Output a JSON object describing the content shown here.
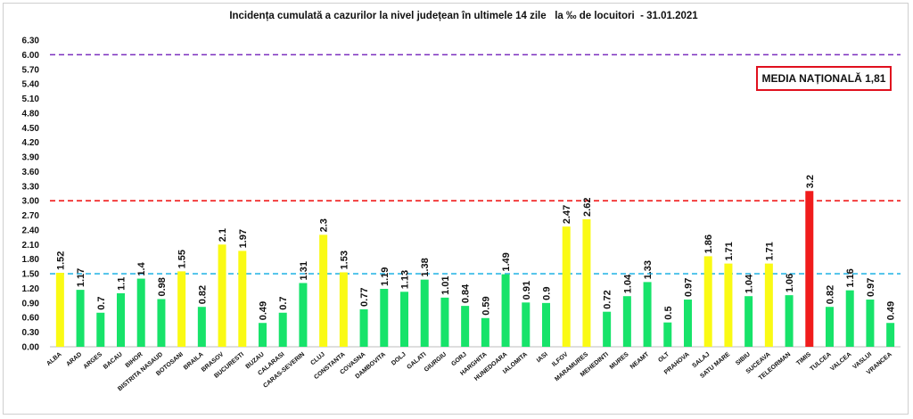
{
  "chart_data": {
    "type": "bar",
    "title": "Incidența cumulată a cazurilor la nivel județean în ultimele 14 zile   la ‰ de locuitori  - 31.01.2021",
    "xlabel": "",
    "ylabel": "",
    "ylim": [
      0,
      6.3
    ],
    "yticks": [
      "0.00",
      "0.30",
      "0.60",
      "0.90",
      "1.20",
      "1.50",
      "1.80",
      "2.10",
      "2.40",
      "2.70",
      "3.00",
      "3.30",
      "3.60",
      "3.90",
      "4.20",
      "4.50",
      "4.80",
      "5.10",
      "5.40",
      "5.70",
      "6.00",
      "6.30"
    ],
    "categories": [
      "ALBA",
      "ARAD",
      "ARGES",
      "BACAU",
      "BIHOR",
      "BISTRITA NASAUD",
      "BOTOSANI",
      "BRAILA",
      "BRASOV",
      "BUCURESTI",
      "BUZAU",
      "CALARASI",
      "CARAS-SEVERIN",
      "CLUJ",
      "CONSTANTA",
      "COVASNA",
      "DAMBOVITA",
      "DOLJ",
      "GALATI",
      "GIURGIU",
      "GORJ",
      "HARGHITA",
      "HUNEDOARA",
      "IALOMITA",
      "IASI",
      "ILFOV",
      "MARAMURES",
      "MEHEDINTI",
      "MURES",
      "NEAMT",
      "OLT",
      "PRAHOVA",
      "SALAJ",
      "SATU MARE",
      "SIBIU",
      "SUCEAVA",
      "TELEORMAN",
      "TIMIS",
      "TULCEA",
      "VALCEA",
      "VASLUI",
      "VRANCEA"
    ],
    "values": [
      1.52,
      1.17,
      0.7,
      1.1,
      1.4,
      0.98,
      1.55,
      0.82,
      2.1,
      1.97,
      0.49,
      0.7,
      1.31,
      2.3,
      1.53,
      0.77,
      1.19,
      1.13,
      1.38,
      1.01,
      0.84,
      0.59,
      1.49,
      0.91,
      0.9,
      2.47,
      2.62,
      0.72,
      1.04,
      1.33,
      0.5,
      0.97,
      1.86,
      1.71,
      1.04,
      1.71,
      1.06,
      3.2,
      0.82,
      1.16,
      0.97,
      0.49
    ],
    "labels": [
      "1.52",
      "1.17",
      "0.7",
      "1.1",
      "1.4",
      "0.98",
      "1.55",
      "0.82",
      "2.1",
      "1.97",
      "0.49",
      "0.7",
      "1.31",
      "2.3",
      "1.53",
      "0.77",
      "1.19",
      "1.13",
      "1.38",
      "1.01",
      "0.84",
      "0.59",
      "1.49",
      "0.91",
      "0.9",
      "2.47",
      "2.62",
      "0.72",
      "1.04",
      "1.33",
      "0.5",
      "0.97",
      "1.86",
      "1.71",
      "1.04",
      "1.71",
      "1.06",
      "3.2",
      "0.82",
      "1.16",
      "0.97",
      "0.49"
    ],
    "reference_lines": [
      {
        "value": 6.0,
        "color": "#7b2fbe",
        "style": "dashed"
      },
      {
        "value": 3.0,
        "color": "#f01c1c",
        "style": "dashed"
      },
      {
        "value": 1.5,
        "color": "#2fb7e6",
        "style": "dashed"
      }
    ],
    "colors": {
      "green": "#17e36a",
      "yellow": "#fafa14",
      "red": "#f01c1c"
    },
    "legend": "none",
    "grid": false
  },
  "annotation": {
    "media_nationala": "MEDIA NAȚIONALĂ 1,81"
  }
}
